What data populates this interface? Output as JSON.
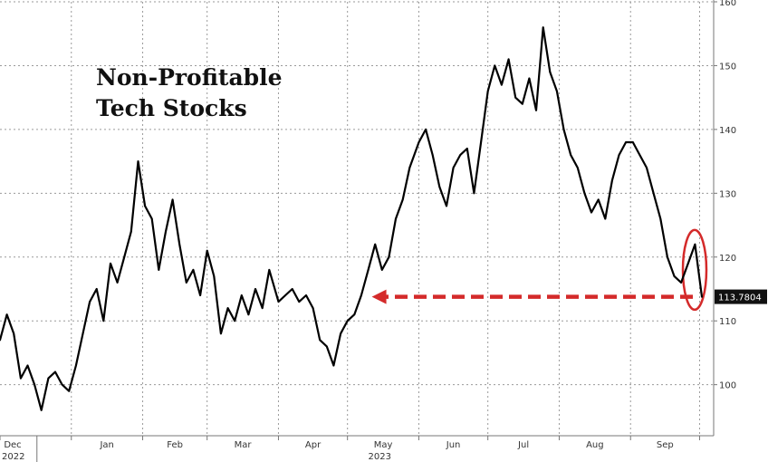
{
  "chart_data": {
    "type": "line",
    "title_lines": [
      "Non-Profitable",
      "Tech Stocks"
    ],
    "xlabel": "",
    "ylabel": "",
    "ylim": [
      92,
      160
    ],
    "yticks": [
      100,
      110,
      120,
      130,
      140,
      150,
      160
    ],
    "grid": true,
    "x_axis": {
      "months": [
        "Dec",
        "Jan",
        "Feb",
        "Mar",
        "Apr",
        "May",
        "Jun",
        "Jul",
        "Aug",
        "Sep"
      ],
      "years": [
        "2022",
        "2023"
      ]
    },
    "last_value_label": "113.7804",
    "annotations": [
      {
        "type": "dashed-arrow",
        "color": "#d42a2a",
        "from_value": 113.78,
        "to_month": "May"
      },
      {
        "type": "ellipse",
        "color": "#d42a2a",
        "around": "last-value"
      }
    ],
    "series": [
      {
        "color": "#000000",
        "x": [
          "2022-12-01",
          "2022-12-04",
          "2022-12-07",
          "2022-12-10",
          "2022-12-13",
          "2022-12-16",
          "2022-12-19",
          "2022-12-22",
          "2022-12-25",
          "2022-12-28",
          "2022-12-31",
          "2023-01-03",
          "2023-01-06",
          "2023-01-09",
          "2023-01-12",
          "2023-01-15",
          "2023-01-18",
          "2023-01-21",
          "2023-01-24",
          "2023-01-27",
          "2023-01-30",
          "2023-02-02",
          "2023-02-05",
          "2023-02-08",
          "2023-02-11",
          "2023-02-14",
          "2023-02-17",
          "2023-02-20",
          "2023-02-23",
          "2023-02-26",
          "2023-03-01",
          "2023-03-04",
          "2023-03-07",
          "2023-03-10",
          "2023-03-13",
          "2023-03-16",
          "2023-03-19",
          "2023-03-22",
          "2023-03-25",
          "2023-03-28",
          "2023-04-01",
          "2023-04-04",
          "2023-04-07",
          "2023-04-10",
          "2023-04-13",
          "2023-04-16",
          "2023-04-19",
          "2023-04-22",
          "2023-04-25",
          "2023-04-28",
          "2023-05-01",
          "2023-05-04",
          "2023-05-07",
          "2023-05-10",
          "2023-05-13",
          "2023-05-16",
          "2023-05-19",
          "2023-05-22",
          "2023-05-25",
          "2023-05-28",
          "2023-06-01",
          "2023-06-04",
          "2023-06-07",
          "2023-06-10",
          "2023-06-13",
          "2023-06-16",
          "2023-06-19",
          "2023-06-22",
          "2023-06-25",
          "2023-06-28",
          "2023-07-01",
          "2023-07-04",
          "2023-07-07",
          "2023-07-10",
          "2023-07-13",
          "2023-07-16",
          "2023-07-19",
          "2023-07-22",
          "2023-07-25",
          "2023-07-28",
          "2023-07-31",
          "2023-08-03",
          "2023-08-06",
          "2023-08-09",
          "2023-08-12",
          "2023-08-15",
          "2023-08-18",
          "2023-08-21",
          "2023-08-24",
          "2023-08-27",
          "2023-08-30",
          "2023-09-02",
          "2023-09-05",
          "2023-09-08",
          "2023-09-11",
          "2023-09-14",
          "2023-09-17",
          "2023-09-20",
          "2023-09-23",
          "2023-09-26",
          "2023-09-29",
          "2023-10-02"
        ],
        "values": [
          107,
          111,
          108,
          101,
          103,
          100,
          96,
          101,
          102,
          100,
          99,
          103,
          108,
          113,
          115,
          110,
          119,
          116,
          120,
          124,
          135,
          128,
          126,
          118,
          124,
          129,
          122,
          116,
          118,
          114,
          121,
          117,
          108,
          112,
          110,
          114,
          111,
          115,
          112,
          118,
          113,
          114,
          115,
          113,
          114,
          112,
          107,
          106,
          103,
          108,
          110,
          111,
          114,
          118,
          122,
          118,
          120,
          126,
          129,
          134,
          138,
          140,
          136,
          131,
          128,
          134,
          136,
          137,
          130,
          138,
          146,
          150,
          147,
          151,
          145,
          144,
          148,
          143,
          156,
          149,
          146,
          140,
          136,
          134,
          130,
          127,
          129,
          126,
          132,
          136,
          138,
          138,
          136,
          134,
          130,
          126,
          120,
          117,
          116,
          119,
          122,
          113.78
        ]
      }
    ]
  }
}
